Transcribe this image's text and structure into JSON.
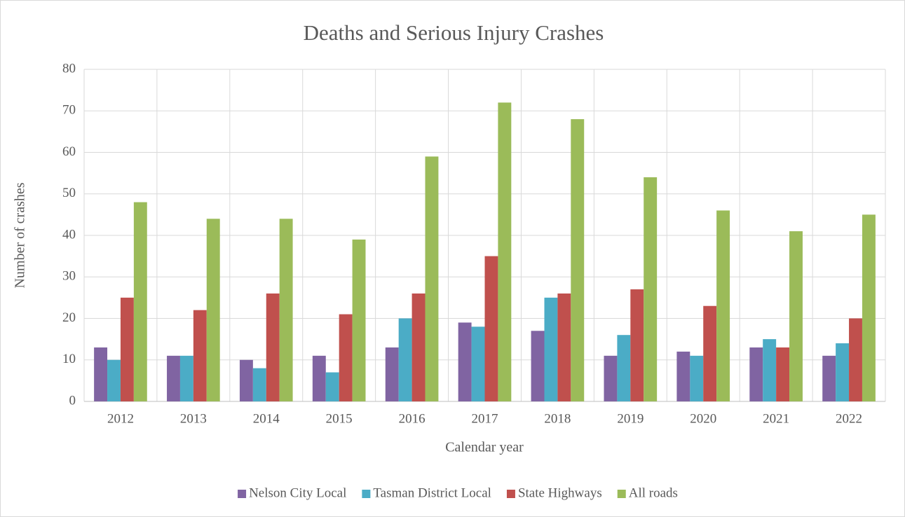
{
  "chart_data": {
    "type": "bar",
    "title": "Deaths and Serious Injury Crashes",
    "x_label": "Calendar year",
    "y_label": "Number of crashes",
    "categories": [
      "2012",
      "2013",
      "2014",
      "2015",
      "2016",
      "2017",
      "2018",
      "2019",
      "2020",
      "2021",
      "2022"
    ],
    "series": [
      {
        "name": "Nelson City Local",
        "color": "#8064a2",
        "values": [
          13,
          11,
          10,
          11,
          13,
          19,
          17,
          11,
          12,
          13,
          11
        ]
      },
      {
        "name": "Tasman District Local",
        "color": "#4bacc6",
        "values": [
          10,
          11,
          8,
          7,
          20,
          18,
          25,
          16,
          11,
          15,
          14
        ]
      },
      {
        "name": "State Highways",
        "color": "#c0504d",
        "values": [
          25,
          22,
          26,
          21,
          26,
          35,
          26,
          27,
          23,
          13,
          20
        ]
      },
      {
        "name": "All roads",
        "color": "#9bbb59",
        "values": [
          48,
          44,
          44,
          39,
          59,
          72,
          68,
          54,
          46,
          41,
          45
        ]
      }
    ],
    "ylim": [
      0,
      80
    ],
    "yticks": [
      0,
      10,
      20,
      30,
      40,
      50,
      60,
      70,
      80
    ],
    "grid": true,
    "legend": "bottom"
  }
}
